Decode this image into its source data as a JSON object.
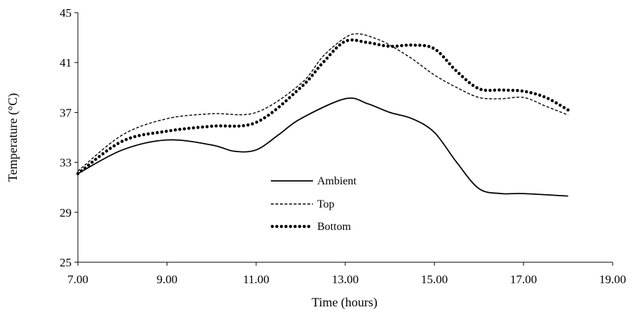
{
  "chart_data": {
    "type": "line",
    "title": "",
    "xlabel": "Time (hours)",
    "ylabel": "Temperature (°C)",
    "xlim": [
      7,
      19
    ],
    "ylim": [
      25,
      45
    ],
    "xticks": [
      7,
      9,
      11,
      13,
      15,
      17,
      19
    ],
    "xtick_labels": [
      "7.00",
      "9.00",
      "11.00",
      "13.00",
      "15.00",
      "17.00",
      "19.00"
    ],
    "yticks": [
      25,
      29,
      33,
      37,
      41,
      45
    ],
    "ytick_labels": [
      "25",
      "29",
      "33",
      "37",
      "41",
      "45"
    ],
    "grid": false,
    "legend_position": "center-left inside plot",
    "series": [
      {
        "name": "Ambient",
        "style": "solid",
        "color": "#000000",
        "x": [
          7.0,
          8.0,
          9.0,
          10.0,
          10.5,
          11.0,
          11.5,
          12.0,
          13.0,
          13.5,
          14.0,
          14.5,
          15.0,
          15.5,
          16.0,
          16.5,
          17.0,
          18.0
        ],
        "y": [
          32.1,
          34.0,
          34.8,
          34.4,
          33.9,
          34.0,
          35.2,
          36.5,
          38.1,
          37.7,
          37.0,
          36.5,
          35.4,
          33.0,
          30.9,
          30.5,
          30.5,
          30.3
        ]
      },
      {
        "name": "Top",
        "style": "dashed",
        "color": "#000000",
        "x": [
          7.0,
          8.0,
          9.0,
          10.0,
          11.0,
          12.0,
          12.5,
          13.0,
          13.3,
          13.7,
          14.0,
          14.5,
          15.0,
          15.5,
          16.0,
          16.5,
          17.0,
          17.5,
          18.0
        ],
        "y": [
          32.3,
          35.2,
          36.5,
          36.9,
          37.0,
          39.3,
          41.5,
          43.0,
          43.3,
          42.9,
          42.4,
          41.3,
          40.0,
          39.0,
          38.2,
          38.1,
          38.2,
          37.5,
          36.8
        ]
      },
      {
        "name": "Bottom",
        "style": "dotted",
        "color": "#000000",
        "x": [
          7.0,
          8.0,
          9.0,
          10.0,
          11.0,
          12.0,
          12.5,
          13.0,
          13.5,
          14.0,
          14.5,
          15.0,
          15.5,
          16.0,
          16.5,
          17.0,
          17.5,
          18.0
        ],
        "y": [
          32.1,
          34.7,
          35.5,
          35.9,
          36.2,
          39.0,
          41.0,
          42.7,
          42.6,
          42.3,
          42.4,
          42.1,
          40.3,
          38.9,
          38.8,
          38.7,
          38.2,
          37.2
        ]
      }
    ]
  }
}
